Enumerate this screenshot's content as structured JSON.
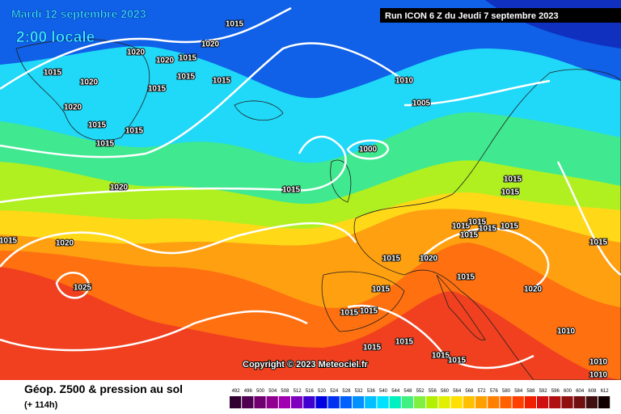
{
  "header": {
    "date": "Mardi 12 septembre 2023",
    "time": "2:00 locale",
    "run": "Run ICON 6 Z du Jeudi 7 septembre 2023"
  },
  "copyright": "Copyright © 2023 Meteociel.fr",
  "legend": {
    "title": "Géop. Z500 & pression au sol",
    "lead": "(+ 114h)",
    "scale": [
      492,
      496,
      500,
      504,
      508,
      512,
      516,
      520,
      524,
      528,
      532,
      536,
      540,
      544,
      548,
      552,
      556,
      560,
      564,
      568,
      572,
      576,
      580,
      584,
      588,
      592,
      596,
      600,
      604,
      608,
      612
    ],
    "colors": [
      "#300030",
      "#500050",
      "#700070",
      "#900090",
      "#a000b0",
      "#8000c0",
      "#4000d0",
      "#0000e0",
      "#0030f0",
      "#0060ff",
      "#0090ff",
      "#00c0ff",
      "#00e0ff",
      "#00f0c0",
      "#40f080",
      "#80f040",
      "#b0f000",
      "#e0f000",
      "#ffe000",
      "#ffc000",
      "#ffa000",
      "#ff8000",
      "#ff6000",
      "#ff4000",
      "#f02000",
      "#d01010",
      "#b01010",
      "#901010",
      "#701010",
      "#401010",
      "#100000"
    ]
  },
  "isobar_labels": [
    1015,
    1020,
    1020,
    1015,
    1020,
    1015,
    1015,
    1015,
    1020,
    1015,
    1020,
    1015,
    1015,
    1015,
    1010,
    1005,
    1000,
    1020,
    1015,
    1015,
    1015,
    1015,
    1020,
    1025,
    1015,
    1015,
    1015,
    1015,
    1015,
    1015,
    1015,
    1020,
    1015,
    1015,
    1020,
    1015,
    1015,
    1010,
    1015,
    1015,
    1015,
    1015,
    1010,
    1010
  ]
}
